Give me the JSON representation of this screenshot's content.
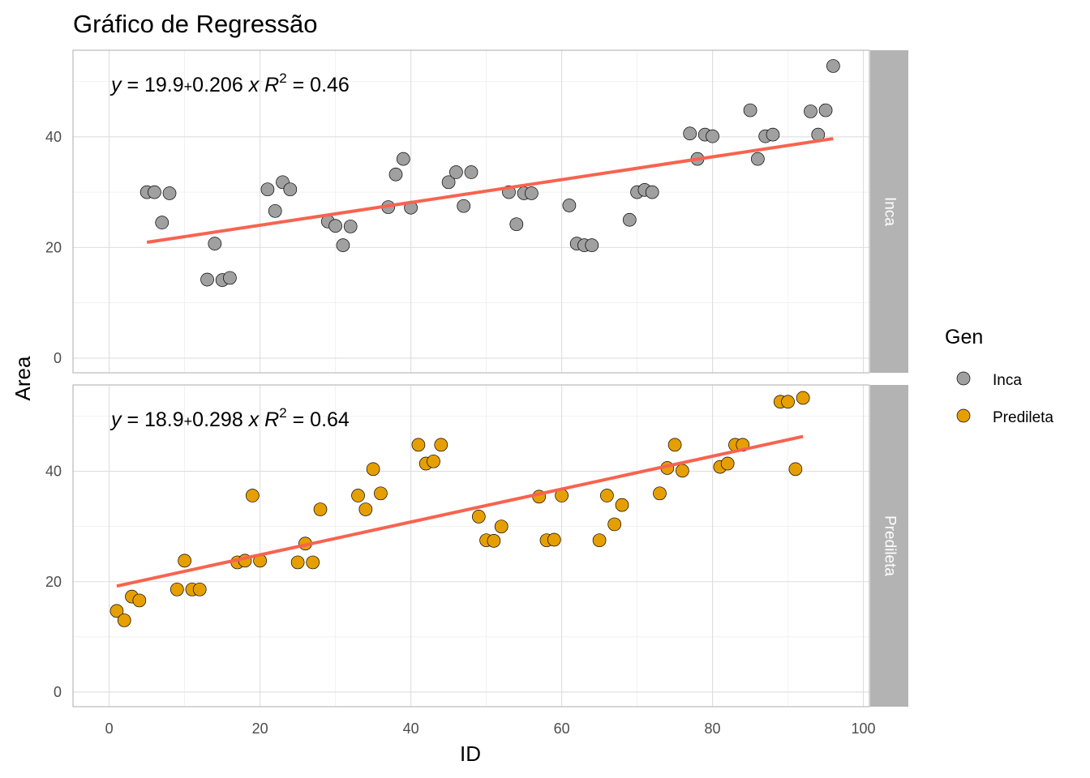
{
  "chart_data": {
    "type": "scatter",
    "title": "Gráfico de Regressão",
    "xlabel": "ID",
    "ylabel": "Area",
    "xlim": [
      -4.8,
      100.8
    ],
    "ylim": [
      -2.65,
      55.65
    ],
    "x_ticks": [
      0,
      20,
      40,
      60,
      80,
      100
    ],
    "y_ticks": [
      0,
      20,
      40
    ],
    "grid": true,
    "facets": [
      "Inca",
      "Predileta"
    ],
    "legend": {
      "title": "Gen",
      "position": "right",
      "entries": [
        {
          "label": "Inca",
          "color": "#a0a0a0"
        },
        {
          "label": "Predileta",
          "color": "#e69f00"
        }
      ]
    },
    "series": [
      {
        "name": "Inca",
        "color": "#a0a0a0",
        "equation": {
          "intercept": "19.9",
          "slope": "0.206",
          "r2_value": "0.46"
        },
        "fit": {
          "intercept": 19.9,
          "slope": 0.206,
          "x_range": [
            5,
            96
          ]
        },
        "points": [
          [
            5,
            30.0
          ],
          [
            6,
            30.0
          ],
          [
            7,
            24.5
          ],
          [
            8,
            29.8
          ],
          [
            13,
            14.2
          ],
          [
            14,
            20.7
          ],
          [
            15,
            14.1
          ],
          [
            16,
            14.5
          ],
          [
            21,
            30.5
          ],
          [
            22,
            26.6
          ],
          [
            23,
            31.8
          ],
          [
            24,
            30.5
          ],
          [
            29,
            24.7
          ],
          [
            30,
            23.9
          ],
          [
            31,
            20.4
          ],
          [
            32,
            23.8
          ],
          [
            37,
            27.3
          ],
          [
            38,
            33.2
          ],
          [
            39,
            36.0
          ],
          [
            40,
            27.2
          ],
          [
            45,
            31.8
          ],
          [
            46,
            33.6
          ],
          [
            47,
            27.5
          ],
          [
            48,
            33.6
          ],
          [
            53,
            30.0
          ],
          [
            54,
            24.2
          ],
          [
            55,
            29.8
          ],
          [
            56,
            29.8
          ],
          [
            61,
            27.6
          ],
          [
            62,
            20.7
          ],
          [
            63,
            20.4
          ],
          [
            64,
            20.4
          ],
          [
            69,
            25.0
          ],
          [
            70,
            30.0
          ],
          [
            71,
            30.4
          ],
          [
            72,
            30.0
          ],
          [
            77,
            40.6
          ],
          [
            78,
            36.0
          ],
          [
            79,
            40.4
          ],
          [
            80,
            40.1
          ],
          [
            85,
            44.8
          ],
          [
            86,
            36.0
          ],
          [
            87,
            40.1
          ],
          [
            88,
            40.4
          ],
          [
            93,
            44.6
          ],
          [
            94,
            40.4
          ],
          [
            95,
            44.8
          ],
          [
            96,
            52.8
          ]
        ]
      },
      {
        "name": "Predileta",
        "color": "#e69f00",
        "equation": {
          "intercept": "18.9",
          "slope": "0.298",
          "r2_value": "0.64"
        },
        "fit": {
          "intercept": 18.9,
          "slope": 0.298,
          "x_range": [
            1,
            92
          ]
        },
        "points": [
          [
            1,
            14.7
          ],
          [
            2,
            13.0
          ],
          [
            3,
            17.3
          ],
          [
            4,
            16.6
          ],
          [
            9,
            18.6
          ],
          [
            10,
            23.8
          ],
          [
            11,
            18.6
          ],
          [
            12,
            18.6
          ],
          [
            17,
            23.5
          ],
          [
            18,
            23.8
          ],
          [
            19,
            35.6
          ],
          [
            20,
            23.8
          ],
          [
            25,
            23.5
          ],
          [
            26,
            26.9
          ],
          [
            27,
            23.5
          ],
          [
            28,
            33.1
          ],
          [
            33,
            35.6
          ],
          [
            34,
            33.1
          ],
          [
            35,
            40.4
          ],
          [
            36,
            36.0
          ],
          [
            41,
            44.8
          ],
          [
            42,
            41.4
          ],
          [
            43,
            41.8
          ],
          [
            44,
            44.8
          ],
          [
            49,
            31.8
          ],
          [
            50,
            27.5
          ],
          [
            51,
            27.4
          ],
          [
            52,
            30.0
          ],
          [
            57,
            35.4
          ],
          [
            58,
            27.5
          ],
          [
            59,
            27.6
          ],
          [
            60,
            35.6
          ],
          [
            65,
            27.5
          ],
          [
            66,
            35.6
          ],
          [
            67,
            30.4
          ],
          [
            68,
            33.9
          ],
          [
            73,
            36.0
          ],
          [
            74,
            40.6
          ],
          [
            75,
            44.8
          ],
          [
            76,
            40.1
          ],
          [
            81,
            40.8
          ],
          [
            82,
            41.4
          ],
          [
            83,
            44.8
          ],
          [
            84,
            44.8
          ],
          [
            89,
            52.6
          ],
          [
            90,
            52.6
          ],
          [
            91,
            40.4
          ],
          [
            92,
            53.3
          ]
        ]
      }
    ]
  }
}
